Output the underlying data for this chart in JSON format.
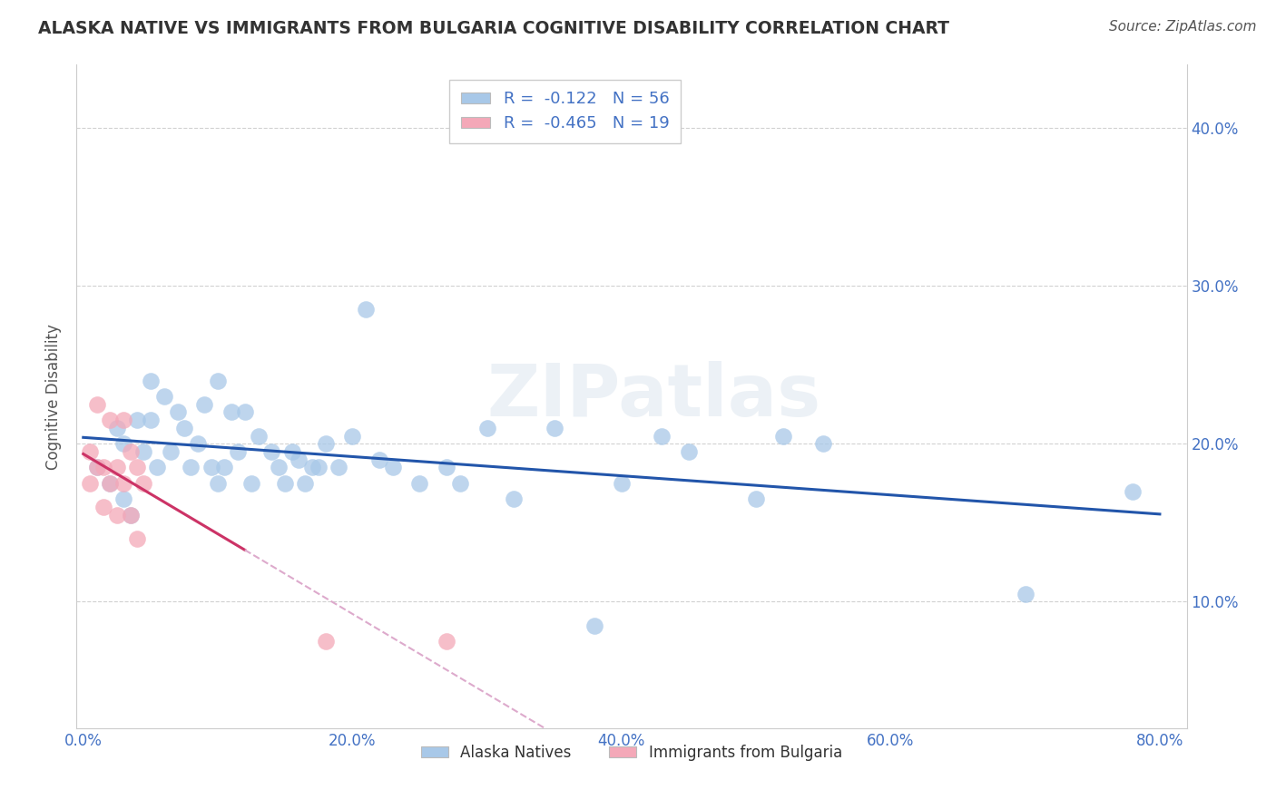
{
  "title": "ALASKA NATIVE VS IMMIGRANTS FROM BULGARIA COGNITIVE DISABILITY CORRELATION CHART",
  "source": "Source: ZipAtlas.com",
  "ylabel_label": "Cognitive Disability",
  "legend_labels": [
    "Alaska Natives",
    "Immigrants from Bulgaria"
  ],
  "legend_r_values": [
    "-0.122",
    "-0.465"
  ],
  "legend_n_values": [
    "56",
    "19"
  ],
  "blue_color": "#A8C8E8",
  "pink_color": "#F4A8B8",
  "blue_line_color": "#2255AA",
  "pink_line_color": "#CC3366",
  "pink_dash_color": "#DDAACC",
  "xlim": [
    -0.005,
    0.82
  ],
  "ylim": [
    0.02,
    0.44
  ],
  "x_ticks": [
    0.0,
    0.2,
    0.4,
    0.6,
    0.8
  ],
  "y_ticks": [
    0.1,
    0.2,
    0.3,
    0.4
  ],
  "watermark": "ZIPatlas",
  "background_color": "#FFFFFF",
  "grid_color": "#CCCCCC",
  "title_color": "#333333",
  "axis_label_color": "#4472C4",
  "alaska_x": [
    0.01,
    0.02,
    0.025,
    0.03,
    0.03,
    0.035,
    0.04,
    0.045,
    0.05,
    0.05,
    0.055,
    0.06,
    0.065,
    0.07,
    0.075,
    0.08,
    0.085,
    0.09,
    0.095,
    0.1,
    0.1,
    0.105,
    0.11,
    0.115,
    0.12,
    0.125,
    0.13,
    0.14,
    0.145,
    0.15,
    0.155,
    0.16,
    0.165,
    0.17,
    0.175,
    0.18,
    0.19,
    0.2,
    0.21,
    0.22,
    0.23,
    0.25,
    0.27,
    0.28,
    0.3,
    0.32,
    0.35,
    0.38,
    0.4,
    0.43,
    0.45,
    0.5,
    0.52,
    0.55,
    0.7,
    0.78
  ],
  "alaska_y": [
    0.185,
    0.175,
    0.21,
    0.165,
    0.2,
    0.155,
    0.215,
    0.195,
    0.24,
    0.215,
    0.185,
    0.23,
    0.195,
    0.22,
    0.21,
    0.185,
    0.2,
    0.225,
    0.185,
    0.24,
    0.175,
    0.185,
    0.22,
    0.195,
    0.22,
    0.175,
    0.205,
    0.195,
    0.185,
    0.175,
    0.195,
    0.19,
    0.175,
    0.185,
    0.185,
    0.2,
    0.185,
    0.205,
    0.285,
    0.19,
    0.185,
    0.175,
    0.185,
    0.175,
    0.21,
    0.165,
    0.21,
    0.085,
    0.175,
    0.205,
    0.195,
    0.165,
    0.205,
    0.2,
    0.105,
    0.17
  ],
  "bulgaria_x": [
    0.005,
    0.01,
    0.015,
    0.02,
    0.025,
    0.03,
    0.035,
    0.04,
    0.045,
    0.005,
    0.01,
    0.015,
    0.02,
    0.025,
    0.03,
    0.035,
    0.04,
    0.18,
    0.27
  ],
  "bulgaria_y": [
    0.195,
    0.225,
    0.185,
    0.215,
    0.185,
    0.215,
    0.195,
    0.185,
    0.175,
    0.175,
    0.185,
    0.16,
    0.175,
    0.155,
    0.175,
    0.155,
    0.14,
    0.075,
    0.075
  ]
}
